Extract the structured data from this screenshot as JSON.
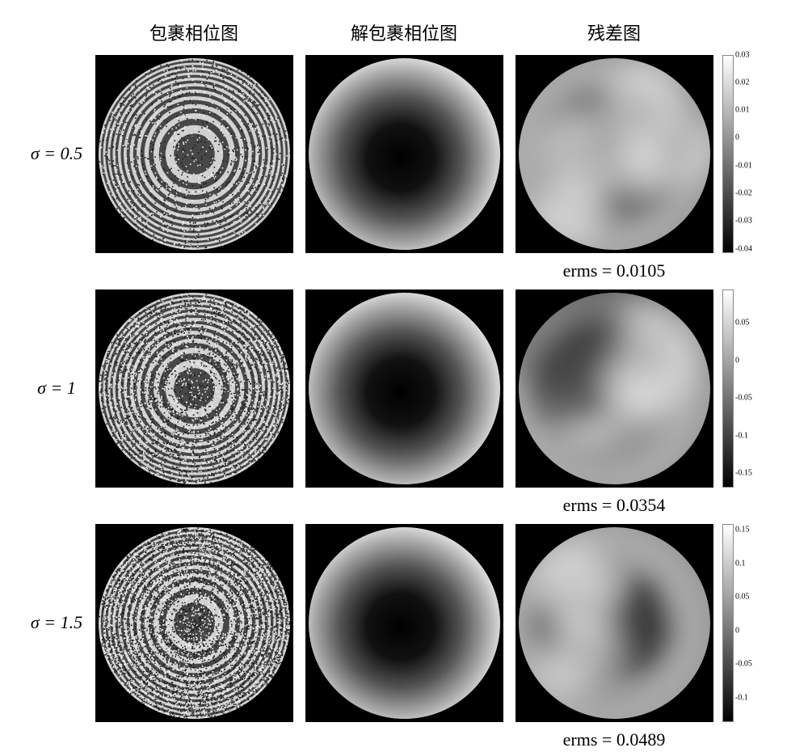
{
  "headers": {
    "col1": "包裹相位图",
    "col2": "解包裹相位图",
    "col3": "残差图"
  },
  "rows": [
    {
      "sigma_label": "σ = 0.5",
      "erms_label": "erms = 0.0105",
      "noise_level": 0.5,
      "wrapped": {
        "type": "concentric_fringes",
        "rings": 22,
        "noise": 0.15
      },
      "unwrapped": {
        "type": "radial_gradient",
        "center_dark": true
      },
      "residual": {
        "type": "blob_pattern",
        "variance": 0.02
      },
      "colorbar": {
        "ticks": [
          {
            "label": "0.03",
            "pos": 0
          },
          {
            "label": "0.02",
            "pos": 14
          },
          {
            "label": "0.01",
            "pos": 28
          },
          {
            "label": "0",
            "pos": 42
          },
          {
            "label": "-0.01",
            "pos": 56
          },
          {
            "label": "-0.02",
            "pos": 70
          },
          {
            "label": "-0.03",
            "pos": 84
          },
          {
            "label": "-0.04",
            "pos": 98
          }
        ]
      }
    },
    {
      "sigma_label": "σ = 1",
      "erms_label": "erms = 0.0354",
      "noise_level": 1.0,
      "wrapped": {
        "type": "concentric_fringes",
        "rings": 22,
        "noise": 0.35
      },
      "unwrapped": {
        "type": "radial_gradient",
        "center_dark": true
      },
      "residual": {
        "type": "blob_pattern",
        "variance": 0.07
      },
      "colorbar": {
        "ticks": [
          {
            "label": "0.05",
            "pos": 17
          },
          {
            "label": "0",
            "pos": 36
          },
          {
            "label": "-0.05",
            "pos": 55
          },
          {
            "label": "-0.1",
            "pos": 74
          },
          {
            "label": "-0.15",
            "pos": 93
          }
        ]
      }
    },
    {
      "sigma_label": "σ = 1.5",
      "erms_label": "erms = 0.0489",
      "noise_level": 1.5,
      "wrapped": {
        "type": "concentric_fringes",
        "rings": 22,
        "noise": 0.55
      },
      "unwrapped": {
        "type": "radial_gradient",
        "center_dark": true
      },
      "residual": {
        "type": "blob_pattern",
        "variance": 0.1
      },
      "colorbar": {
        "ticks": [
          {
            "label": "0.15",
            "pos": 3
          },
          {
            "label": "0.1",
            "pos": 20
          },
          {
            "label": "0.05",
            "pos": 37
          },
          {
            "label": "0",
            "pos": 54
          },
          {
            "label": "-0.05",
            "pos": 71
          },
          {
            "label": "-0.1",
            "pos": 88
          }
        ]
      }
    }
  ],
  "styles": {
    "background_color": "#ffffff",
    "image_bg": "#000000",
    "header_fontsize": 22,
    "label_fontsize": 22,
    "erms_fontsize": 22,
    "colorbar_fontsize": 10,
    "font_family_chinese": "SimSun",
    "font_family_latin": "Times New Roman",
    "image_size": 245,
    "grid_cols": "80px 260px 260px 260px 50px",
    "colorbar_gradient": [
      "#ffffff",
      "#808080",
      "#000000"
    ]
  }
}
